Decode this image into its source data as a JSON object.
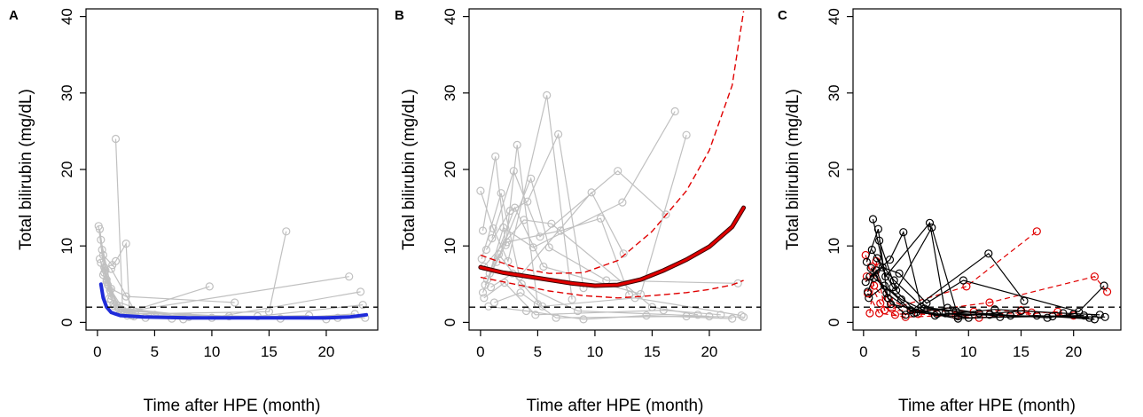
{
  "colors": {
    "background": "#ffffff",
    "axis": "#000000",
    "individual": "#c0c0c0",
    "mean_blue": "#1f2bd9",
    "mean_red": "#e00000",
    "reference_line": "#000000"
  },
  "chart_data": [
    {
      "panel_label": "A",
      "type": "line",
      "xlabel": "Time after HPE (month)",
      "ylabel": "Total bilirubin (mg/dL)",
      "xlim": [
        -1,
        24.5
      ],
      "ylim": [
        -1,
        41
      ],
      "x_ticks": [
        0,
        5,
        10,
        15,
        20
      ],
      "y_ticks": [
        0,
        10,
        20,
        30,
        40
      ],
      "reference_line_y": 2,
      "legend": "none",
      "grid": false,
      "individual_trajectories": [
        [
          [
            0.1,
            12.6
          ],
          [
            0.6,
            6.5
          ],
          [
            1.2,
            3.0
          ],
          [
            2.4,
            1.2
          ],
          [
            9.8,
            4.7
          ]
        ],
        [
          [
            0.2,
            12.2
          ],
          [
            0.8,
            5.6
          ],
          [
            1.5,
            2.1
          ],
          [
            3.0,
            0.9
          ]
        ],
        [
          [
            0.3,
            10.8
          ],
          [
            1.2,
            4.4
          ],
          [
            2.5,
            3.4
          ],
          [
            12.0,
            2.6
          ]
        ],
        [
          [
            1.6,
            24.0
          ],
          [
            2.2,
            1.6
          ],
          [
            3.2,
            0.8
          ]
        ],
        [
          [
            0.5,
            8.8
          ],
          [
            1.3,
            7.5
          ],
          [
            1.6,
            8.0
          ],
          [
            2.5,
            10.3
          ],
          [
            2.8,
            1.4
          ]
        ],
        [
          [
            0.6,
            7.2
          ],
          [
            1.4,
            2.4
          ],
          [
            3.0,
            1.1
          ],
          [
            15.0,
            1.4
          ],
          [
            16.5,
            11.9
          ]
        ],
        [
          [
            0.4,
            9.5
          ],
          [
            1.1,
            4.2
          ],
          [
            2.0,
            1.3
          ],
          [
            22.0,
            6.0
          ]
        ],
        [
          [
            0.7,
            6.8
          ],
          [
            1.8,
            1.9
          ],
          [
            10.0,
            0.6
          ],
          [
            23.0,
            4.0
          ]
        ],
        [
          [
            0.3,
            7.8
          ],
          [
            1.0,
            3.1
          ],
          [
            5.0,
            1.0
          ],
          [
            14.0,
            0.8
          ],
          [
            23.2,
            2.3
          ]
        ],
        [
          [
            0.8,
            5.3
          ],
          [
            1.9,
            1.8
          ],
          [
            8.0,
            0.7
          ],
          [
            20.0,
            0.4
          ]
        ],
        [
          [
            0.5,
            6.2
          ],
          [
            2.1,
            1.5
          ],
          [
            6.5,
            0.5
          ],
          [
            18.5,
            0.9
          ]
        ],
        [
          [
            0.9,
            4.9
          ],
          [
            2.6,
            0.9
          ],
          [
            7.5,
            0.4
          ],
          [
            23.4,
            0.6
          ]
        ],
        [
          [
            0.2,
            8.3
          ],
          [
            1.7,
            2.2
          ],
          [
            4.2,
            0.6
          ],
          [
            16.0,
            0.5
          ],
          [
            22.5,
            1.1
          ]
        ],
        [
          [
            1.2,
            7.0
          ],
          [
            3.3,
            1.4
          ],
          [
            11.5,
            0.8
          ],
          [
            21.0,
            0.6
          ]
        ]
      ],
      "mean_curve": {
        "color": "blue",
        "points": [
          [
            0.3,
            5.0
          ],
          [
            0.5,
            3.2
          ],
          [
            0.8,
            2.0
          ],
          [
            1.2,
            1.3
          ],
          [
            2.0,
            0.9
          ],
          [
            4.0,
            0.7
          ],
          [
            8.0,
            0.6
          ],
          [
            12.0,
            0.6
          ],
          [
            16.0,
            0.6
          ],
          [
            20.0,
            0.6
          ],
          [
            22.0,
            0.7
          ],
          [
            23.5,
            1.0
          ]
        ]
      }
    },
    {
      "panel_label": "B",
      "type": "line",
      "xlabel": "Time after HPE (month)",
      "ylabel": "Total bilirubin (mg/dL)",
      "xlim": [
        -1,
        24.5
      ],
      "ylim": [
        -1,
        41
      ],
      "x_ticks": [
        0,
        5,
        10,
        15,
        20
      ],
      "y_ticks": [
        0,
        10,
        20,
        30,
        40
      ],
      "reference_line_y": 2,
      "legend": "none",
      "grid": false,
      "individual_trajectories": [
        [
          [
            0.0,
            17.2
          ],
          [
            1.1,
            12.3
          ],
          [
            2.4,
            8.0
          ],
          [
            5.8,
            29.7
          ],
          [
            8.0,
            3.0
          ]
        ],
        [
          [
            0.2,
            12.0
          ],
          [
            1.3,
            21.7
          ],
          [
            2.2,
            10.1
          ],
          [
            3.2,
            23.2
          ],
          [
            5.0,
            2.4
          ]
        ],
        [
          [
            0.5,
            9.5
          ],
          [
            2.6,
            14.6
          ],
          [
            4.1,
            15.8
          ],
          [
            6.8,
            24.6
          ],
          [
            9.0,
            4.5
          ]
        ],
        [
          [
            0.1,
            8.3
          ],
          [
            1.8,
            16.9
          ],
          [
            3.4,
            6.0
          ],
          [
            9.7,
            17.0
          ],
          [
            12.5,
            9.0
          ]
        ],
        [
          [
            1.0,
            11.0
          ],
          [
            2.9,
            19.8
          ],
          [
            5.2,
            11.2
          ],
          [
            12.0,
            19.8
          ],
          [
            16.2,
            14.1
          ]
        ],
        [
          [
            0.3,
            7.3
          ],
          [
            3.8,
            13.4
          ],
          [
            6.2,
            12.9
          ],
          [
            15.0,
            2.0
          ],
          [
            19.0,
            1.0
          ]
        ],
        [
          [
            0.8,
            6.4
          ],
          [
            2.0,
            12.4
          ],
          [
            4.6,
            9.8
          ],
          [
            12.4,
            15.7
          ],
          [
            17.0,
            27.6
          ]
        ],
        [
          [
            0.6,
            5.6
          ],
          [
            3.0,
            15.0
          ],
          [
            5.5,
            7.3
          ],
          [
            14.0,
            3.7
          ],
          [
            18.0,
            24.5
          ]
        ],
        [
          [
            0.4,
            4.9
          ],
          [
            2.3,
            10.5
          ],
          [
            7.0,
            12.0
          ],
          [
            10.5,
            13.6
          ],
          [
            13.0,
            3.6
          ]
        ],
        [
          [
            1.4,
            7.9
          ],
          [
            4.4,
            18.8
          ],
          [
            6.0,
            9.8
          ],
          [
            11.0,
            5.5
          ],
          [
            22.5,
            5.1
          ]
        ],
        [
          [
            0.2,
            3.9
          ],
          [
            1.6,
            8.9
          ],
          [
            3.6,
            5.0
          ],
          [
            8.5,
            1.5
          ],
          [
            20.0,
            0.8
          ]
        ],
        [
          [
            0.9,
            4.6
          ],
          [
            2.8,
            6.4
          ],
          [
            5.4,
            2.1
          ],
          [
            13.5,
            3.2
          ],
          [
            22.8,
            0.9
          ]
        ],
        [
          [
            0.3,
            3.2
          ],
          [
            2.1,
            5.2
          ],
          [
            4.8,
            1.0
          ],
          [
            16.0,
            1.6
          ],
          [
            21.0,
            1.0
          ]
        ],
        [
          [
            1.2,
            2.6
          ],
          [
            3.5,
            3.9
          ],
          [
            6.6,
            0.6
          ],
          [
            18.0,
            0.8
          ],
          [
            23.0,
            0.7
          ]
        ],
        [
          [
            0.7,
            2.1
          ],
          [
            4.0,
            1.5
          ],
          [
            9.0,
            0.4
          ],
          [
            14.5,
            0.9
          ],
          [
            22.0,
            0.5
          ]
        ]
      ],
      "mean_curve": {
        "color": "red",
        "points": [
          [
            0.0,
            7.2
          ],
          [
            2.0,
            6.5
          ],
          [
            5.0,
            5.8
          ],
          [
            8.0,
            5.1
          ],
          [
            10.0,
            4.8
          ],
          [
            12.0,
            4.9
          ],
          [
            14.0,
            5.6
          ],
          [
            16.0,
            6.8
          ],
          [
            18.0,
            8.2
          ],
          [
            20.0,
            9.9
          ],
          [
            22.0,
            12.5
          ],
          [
            23.0,
            15.0
          ]
        ]
      },
      "ci_upper": [
        [
          0.0,
          8.8
        ],
        [
          3.0,
          7.2
        ],
        [
          6.0,
          6.4
        ],
        [
          9.0,
          6.5
        ],
        [
          12.0,
          8.1
        ],
        [
          15.0,
          11.9
        ],
        [
          18.0,
          17.2
        ],
        [
          20.0,
          22.5
        ],
        [
          22.0,
          31.0
        ],
        [
          23.0,
          40.7
        ]
      ],
      "ci_lower": [
        [
          0.0,
          5.9
        ],
        [
          3.0,
          5.0
        ],
        [
          6.0,
          4.1
        ],
        [
          9.0,
          3.5
        ],
        [
          12.0,
          3.2
        ],
        [
          15.0,
          3.5
        ],
        [
          18.0,
          3.9
        ],
        [
          20.0,
          4.3
        ],
        [
          22.0,
          4.9
        ],
        [
          23.0,
          5.5
        ]
      ]
    },
    {
      "panel_label": "C",
      "type": "line",
      "xlabel": "Time after HPE (month)",
      "ylabel": "Total bilirubin (mg/dL)",
      "xlim": [
        -1,
        24.5
      ],
      "ylim": [
        -1,
        41
      ],
      "x_ticks": [
        0,
        5,
        10,
        15,
        20
      ],
      "y_ticks": [
        0,
        10,
        20,
        30,
        40
      ],
      "reference_line_y": 2,
      "legend": "none",
      "grid": false,
      "black_trajectories": [
        [
          [
            0.9,
            13.5
          ],
          [
            2.1,
            6.0
          ],
          [
            6.3,
            13.0
          ],
          [
            7.8,
            1.2
          ],
          [
            12.0,
            1.0
          ]
        ],
        [
          [
            1.5,
            10.7
          ],
          [
            3.1,
            4.2
          ],
          [
            6.5,
            12.4
          ],
          [
            9.0,
            0.8
          ],
          [
            15.0,
            1.5
          ]
        ],
        [
          [
            0.3,
            7.9
          ],
          [
            1.4,
            12.2
          ],
          [
            2.3,
            3.2
          ],
          [
            4.0,
            1.0
          ],
          [
            11.9,
            9.0
          ],
          [
            15.3,
            2.8
          ]
        ],
        [
          [
            0.6,
            6.0
          ],
          [
            2.5,
            8.2
          ],
          [
            3.8,
            11.8
          ],
          [
            5.5,
            2.0
          ],
          [
            8.8,
            1.5
          ]
        ],
        [
          [
            0.2,
            5.3
          ],
          [
            1.8,
            7.2
          ],
          [
            3.4,
            6.4
          ],
          [
            6.0,
            2.5
          ],
          [
            9.5,
            5.5
          ],
          [
            20.5,
            1.4
          ],
          [
            22.9,
            4.8
          ]
        ],
        [
          [
            0.8,
            9.5
          ],
          [
            2.8,
            4.6
          ],
          [
            5.0,
            1.3
          ],
          [
            10.0,
            0.6
          ],
          [
            18.0,
            0.8
          ],
          [
            23.0,
            0.7
          ]
        ],
        [
          [
            0.4,
            4.0
          ],
          [
            1.2,
            6.8
          ],
          [
            2.6,
            2.4
          ],
          [
            7.0,
            1.1
          ],
          [
            14.0,
            0.9
          ],
          [
            21.5,
            0.6
          ]
        ],
        [
          [
            1.0,
            5.8
          ],
          [
            3.6,
            3.0
          ],
          [
            6.8,
            0.9
          ],
          [
            12.5,
            1.7
          ],
          [
            19.0,
            1.2
          ],
          [
            22.5,
            1.0
          ]
        ],
        [
          [
            0.5,
            3.2
          ],
          [
            2.0,
            4.8
          ],
          [
            4.5,
            1.6
          ],
          [
            9.0,
            0.5
          ],
          [
            16.5,
            0.9
          ],
          [
            22.0,
            0.4
          ]
        ],
        [
          [
            1.3,
            8.4
          ],
          [
            2.9,
            5.5
          ],
          [
            5.8,
            1.8
          ],
          [
            11.0,
            1.2
          ],
          [
            17.5,
            0.6
          ],
          [
            20.0,
            1.1
          ]
        ],
        [
          [
            0.7,
            7.1
          ],
          [
            2.2,
            3.8
          ],
          [
            4.8,
            1.2
          ],
          [
            8.0,
            1.9
          ],
          [
            13.0,
            0.7
          ],
          [
            21.0,
            0.9
          ]
        ]
      ],
      "red_trajectories": [
        [
          [
            0.2,
            8.8
          ],
          [
            1.0,
            4.8
          ],
          [
            2.7,
            1.8
          ],
          [
            9.8,
            4.7
          ],
          [
            16.5,
            11.9
          ]
        ],
        [
          [
            0.3,
            6.0
          ],
          [
            1.6,
            2.5
          ],
          [
            3.0,
            1.0
          ],
          [
            12.0,
            2.6
          ],
          [
            22.0,
            6.0
          ],
          [
            23.2,
            4.0
          ]
        ],
        [
          [
            0.6,
            1.2
          ],
          [
            1.2,
            8.0
          ],
          [
            2.0,
            1.6
          ],
          [
            10.5,
            1.4
          ],
          [
            15.0,
            1.6
          ],
          [
            20.0,
            0.9
          ]
        ],
        [
          [
            0.4,
            3.8
          ],
          [
            1.5,
            1.2
          ],
          [
            4.0,
            0.7
          ],
          [
            8.8,
            0.9
          ],
          [
            16.0,
            1.3
          ]
        ],
        [
          [
            0.8,
            7.3
          ],
          [
            2.4,
            3.1
          ],
          [
            5.2,
            1.1
          ],
          [
            11.0,
            0.6
          ],
          [
            18.5,
            1.4
          ]
        ]
      ]
    }
  ]
}
